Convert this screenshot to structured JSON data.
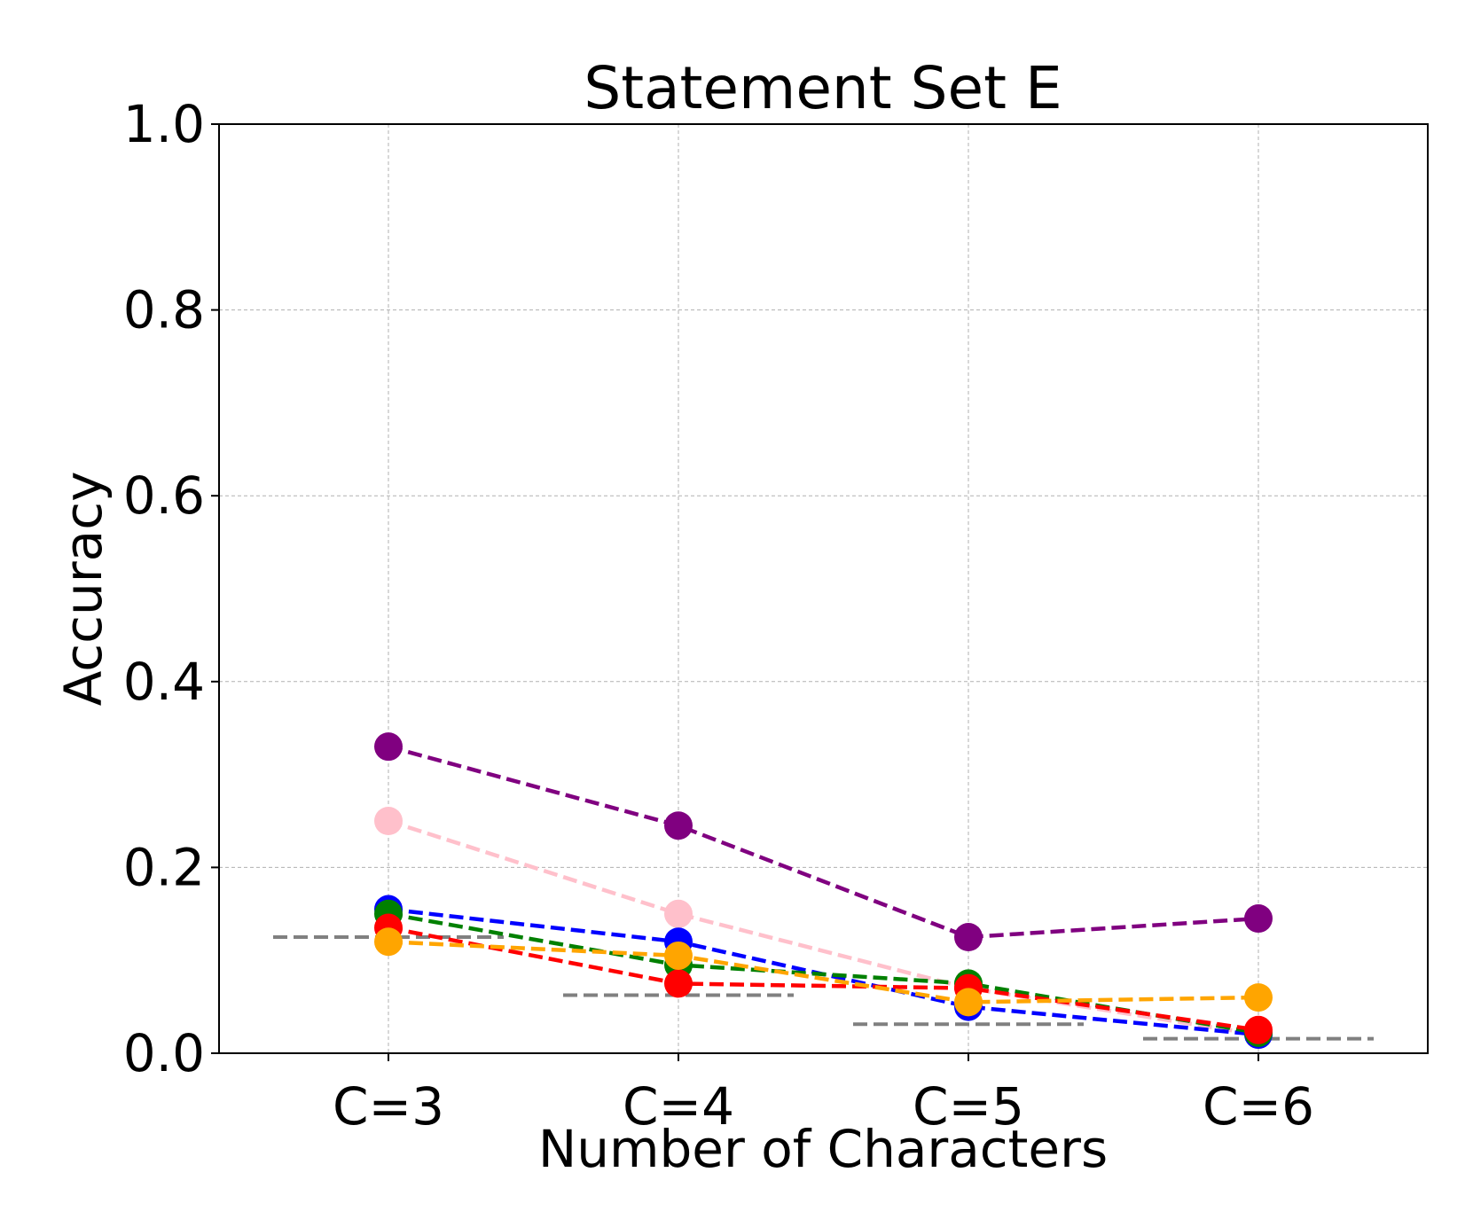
{
  "chart_data": {
    "type": "line",
    "title": "Statement Set E",
    "xlabel": "Number of Characters",
    "ylabel": "Accuracy",
    "categories": [
      "C=3",
      "C=4",
      "C=5",
      "C=6"
    ],
    "ylim": [
      0,
      1.0
    ],
    "yticks": [
      "0.0",
      "0.2",
      "0.4",
      "0.6",
      "0.8",
      "1.0"
    ],
    "grid": true,
    "legend": "none",
    "series": [
      {
        "color": "#800080",
        "values": [
          0.33,
          0.245,
          0.125,
          0.145
        ]
      },
      {
        "color": "#FFC0CB",
        "values": [
          0.25,
          0.15,
          0.07,
          0.02
        ]
      },
      {
        "color": "#0000FF",
        "values": [
          0.155,
          0.12,
          0.05,
          0.02
        ]
      },
      {
        "color": "#008000",
        "values": [
          0.15,
          0.095,
          0.075,
          0.022
        ]
      },
      {
        "color": "#FF0000",
        "values": [
          0.135,
          0.075,
          0.07,
          0.025
        ]
      },
      {
        "color": "#FFA500",
        "values": [
          0.12,
          0.105,
          0.055,
          0.06
        ]
      }
    ],
    "baseline": {
      "color": "#808080",
      "values": [
        0.125,
        0.0625,
        0.03125,
        0.015625
      ]
    }
  }
}
